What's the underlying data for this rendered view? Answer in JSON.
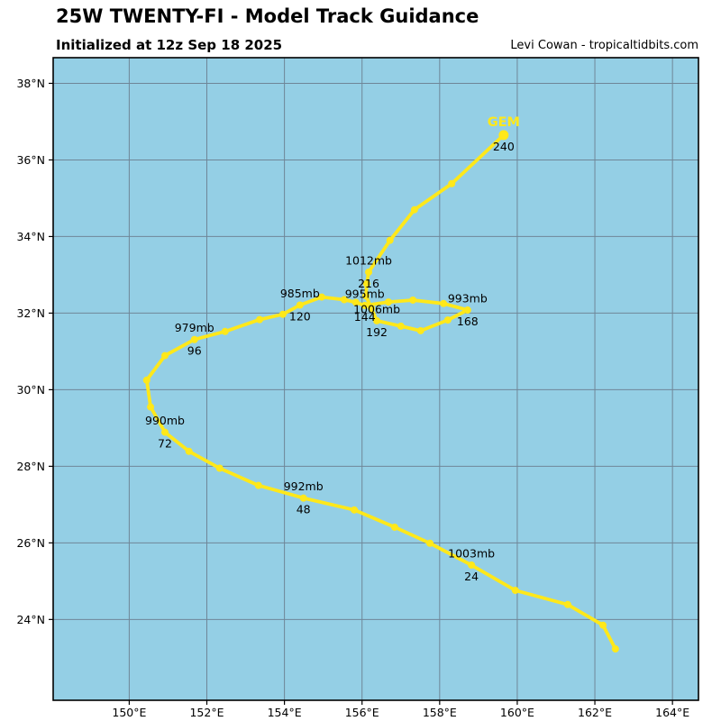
{
  "header": {
    "title": "25W TWENTY-FI - Model Track Guidance",
    "subtitle": "Initialized at 12z Sep 18 2025",
    "credit": "Levi Cowan - tropicaltidbits.com"
  },
  "chart_data": {
    "type": "line",
    "title": "25W TWENTY-FI - Model Track Guidance",
    "subtitle": "Initialized at 12z Sep 18 2025",
    "legend_position": "track-end",
    "grid": true,
    "map": {
      "lon_min": 148.04,
      "lon_max": 164.67,
      "lat_min": 21.89,
      "lat_max": 38.67
    },
    "x_ticks": [
      {
        "lon": 150,
        "label": "150°E"
      },
      {
        "lon": 152,
        "label": "152°E"
      },
      {
        "lon": 154,
        "label": "154°E"
      },
      {
        "lon": 156,
        "label": "156°E"
      },
      {
        "lon": 158,
        "label": "158°E"
      },
      {
        "lon": 160,
        "label": "160°E"
      },
      {
        "lon": 162,
        "label": "162°E"
      },
      {
        "lon": 164,
        "label": "164°E"
      }
    ],
    "y_ticks": [
      {
        "lat": 24,
        "label": "24°N"
      },
      {
        "lat": 26,
        "label": "26°N"
      },
      {
        "lat": 28,
        "label": "28°N"
      },
      {
        "lat": 30,
        "label": "30°N"
      },
      {
        "lat": 32,
        "label": "32°N"
      },
      {
        "lat": 34,
        "label": "34°N"
      },
      {
        "lat": 36,
        "label": "36°N"
      },
      {
        "lat": 38,
        "label": "38°N"
      }
    ],
    "colors": {
      "sea": "#94CFE5",
      "grid": "#6F8698",
      "border": "#000000",
      "track": "#FFE81A",
      "point_label": "#000000"
    },
    "track": {
      "model": "GEM",
      "points": [
        {
          "hr": 0,
          "lon": 162.53,
          "lat": 23.23
        },
        {
          "hr": 6,
          "lon": 162.21,
          "lat": 23.85
        },
        {
          "hr": 12,
          "lon": 161.3,
          "lat": 24.39
        },
        {
          "hr": 18,
          "lon": 159.95,
          "lat": 24.76
        },
        {
          "hr": 24,
          "lon": 158.82,
          "lat": 25.42,
          "pressure": "1003mb",
          "hour_label": "24"
        },
        {
          "hr": 30,
          "lon": 157.75,
          "lat": 25.99
        },
        {
          "hr": 36,
          "lon": 156.84,
          "lat": 26.41
        },
        {
          "hr": 42,
          "lon": 155.8,
          "lat": 26.86
        },
        {
          "hr": 48,
          "lon": 154.49,
          "lat": 27.17,
          "pressure": "992mb",
          "hour_label": "48"
        },
        {
          "hr": 54,
          "lon": 153.33,
          "lat": 27.5
        },
        {
          "hr": 60,
          "lon": 152.33,
          "lat": 27.95
        },
        {
          "hr": 66,
          "lon": 151.54,
          "lat": 28.39
        },
        {
          "hr": 72,
          "lon": 150.92,
          "lat": 28.89,
          "pressure": "990mb",
          "hour_label": "72"
        },
        {
          "hr": 78,
          "lon": 150.55,
          "lat": 29.55
        },
        {
          "hr": 84,
          "lon": 150.45,
          "lat": 30.25
        },
        {
          "hr": 90,
          "lon": 150.92,
          "lat": 30.89
        },
        {
          "hr": 96,
          "lon": 151.68,
          "lat": 31.31,
          "pressure": "979mb",
          "hour_label": "96"
        },
        {
          "hr": 102,
          "lon": 152.47,
          "lat": 31.52
        },
        {
          "hr": 108,
          "lon": 153.36,
          "lat": 31.83
        },
        {
          "hr": 114,
          "lon": 153.96,
          "lat": 31.97
        },
        {
          "hr": 120,
          "lon": 154.4,
          "lat": 32.21,
          "pressure": "985mb",
          "hour_label": "120"
        },
        {
          "hr": 126,
          "lon": 154.96,
          "lat": 32.42
        },
        {
          "hr": 132,
          "lon": 155.54,
          "lat": 32.35
        },
        {
          "hr": 138,
          "lon": 155.84,
          "lat": 32.28
        },
        {
          "hr": 144,
          "lon": 156.07,
          "lat": 32.2,
          "pressure": "995mb",
          "hour_label": "144"
        },
        {
          "hr": 150,
          "lon": 156.68,
          "lat": 32.29
        },
        {
          "hr": 156,
          "lon": 157.31,
          "lat": 32.34
        },
        {
          "hr": 162,
          "lon": 158.1,
          "lat": 32.25
        },
        {
          "hr": 168,
          "lon": 158.72,
          "lat": 32.08,
          "pressure": "993mb",
          "hour_label": "168"
        },
        {
          "hr": 174,
          "lon": 158.21,
          "lat": 31.82
        },
        {
          "hr": 180,
          "lon": 157.51,
          "lat": 31.54
        },
        {
          "hr": 186,
          "lon": 157.0,
          "lat": 31.66
        },
        {
          "hr": 192,
          "lon": 156.38,
          "lat": 31.8,
          "pressure": "1006mb",
          "hour_label": "192"
        },
        {
          "hr": 198,
          "lon": 156.24,
          "lat": 32.13
        },
        {
          "hr": 204,
          "lon": 156.1,
          "lat": 32.45
        },
        {
          "hr": 210,
          "lon": 156.12,
          "lat": 32.77
        },
        {
          "hr": 216,
          "lon": 156.17,
          "lat": 33.07,
          "pressure": "1012mb",
          "hour_label": "216"
        },
        {
          "hr": 222,
          "lon": 156.72,
          "lat": 33.9
        },
        {
          "hr": 228,
          "lon": 157.35,
          "lat": 34.7
        },
        {
          "hr": 234,
          "lon": 158.31,
          "lat": 35.38
        },
        {
          "hr": 240,
          "lon": 159.65,
          "lat": 36.65,
          "hour_label": "240",
          "model_label": "GEM"
        }
      ]
    }
  }
}
